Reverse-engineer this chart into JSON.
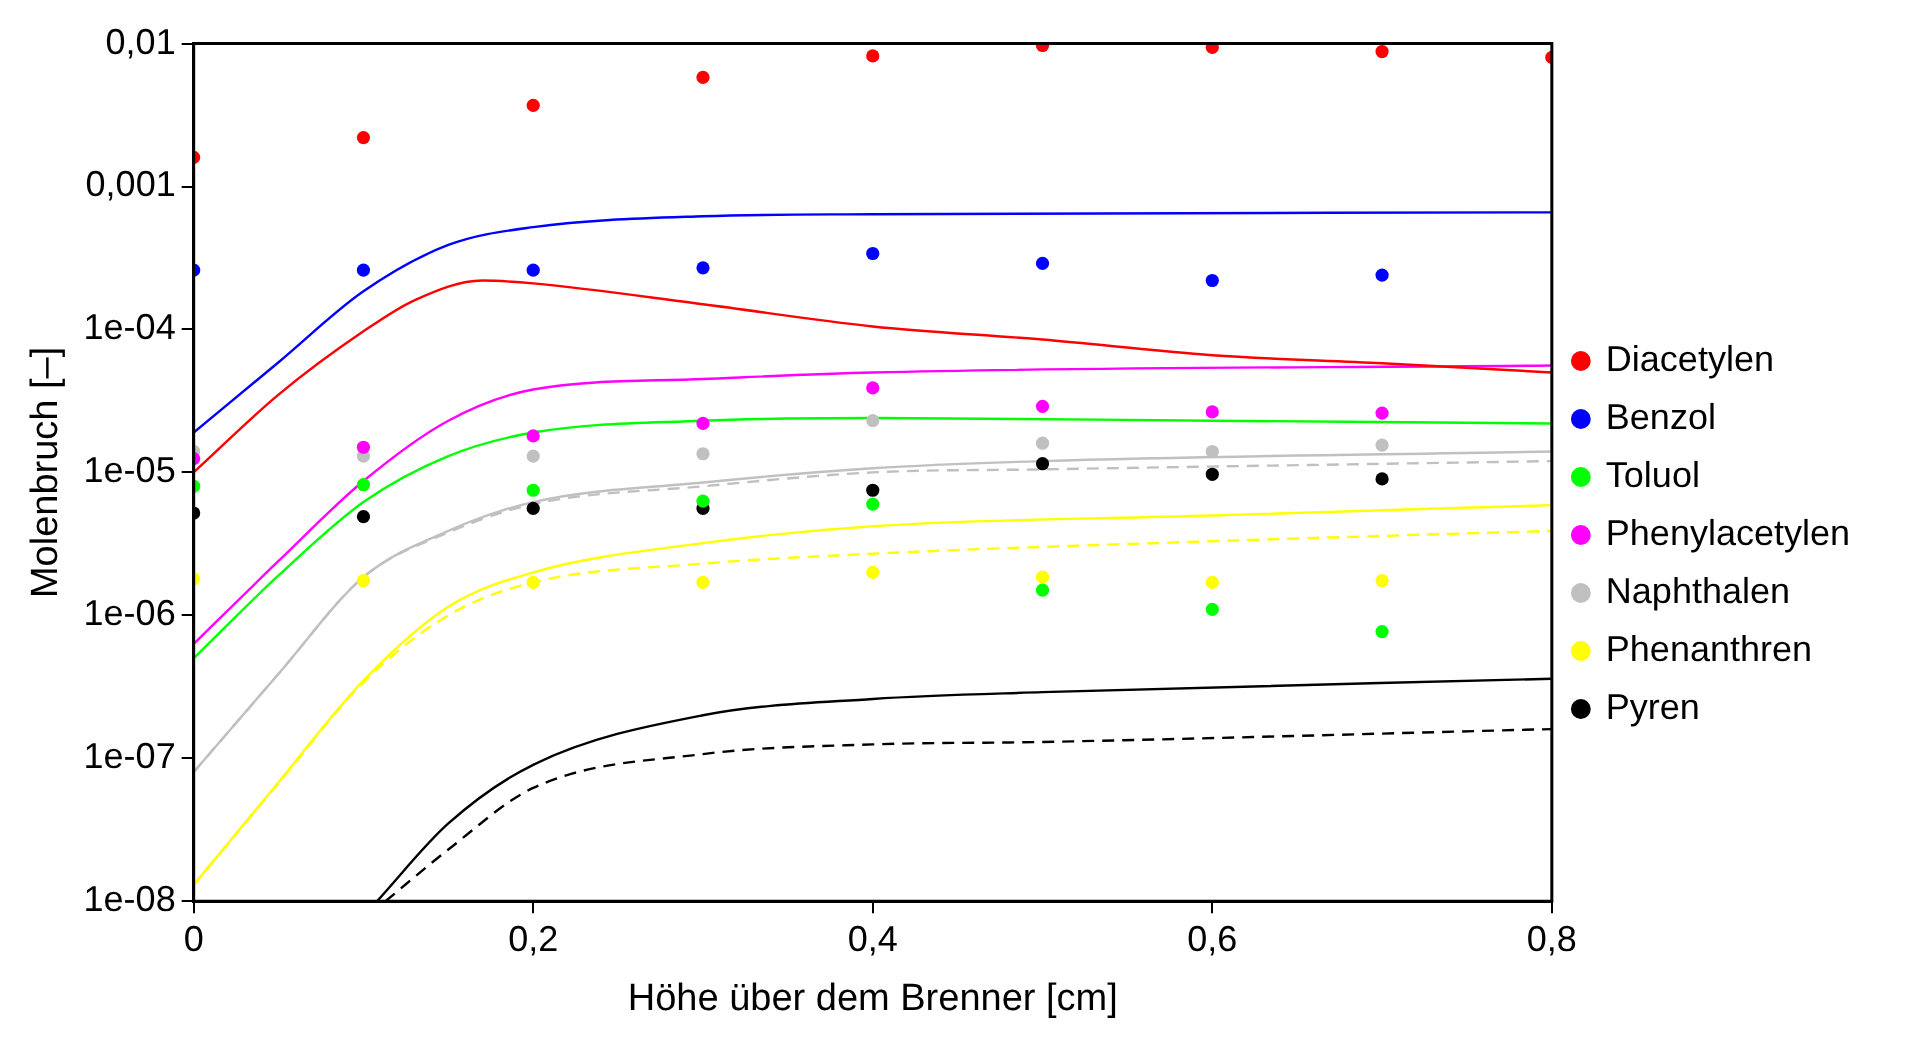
{
  "chart_data": {
    "type": "scatter",
    "xlabel": "Höhe über dem Brenner [cm]",
    "ylabel": "Molenbruch [–]",
    "log": "y",
    "grid": false,
    "legend": "right",
    "marker": "circle",
    "xlim": [
      0,
      0.8
    ],
    "xticks": [
      0,
      {
        "value": 0.2,
        "label": "0,2"
      },
      {
        "value": 0.4,
        "label": "0,4"
      },
      {
        "value": 0.6,
        "label": "0,6"
      },
      {
        "value": 0.8,
        "label": "0,8"
      }
    ],
    "ylim": [
      1e-08,
      0.01
    ],
    "yticks": [
      {
        "value": 1e-08,
        "label": "1e-08"
      },
      {
        "value": 1e-07,
        "label": "1e-07"
      },
      {
        "value": 1e-06,
        "label": "1e-06"
      },
      {
        "value": 1e-05,
        "label": "1e-05"
      },
      {
        "value": 0.0001,
        "label": "1e-04"
      },
      {
        "value": 0.001,
        "label": "0,001"
      },
      {
        "value": 0.01,
        "label": "0,01"
      }
    ],
    "series": [
      {
        "name": "Diacetylen",
        "type": "scatter",
        "color": "#ff0000",
        "x": [
          0,
          0.1,
          0.2,
          0.3,
          0.4,
          0.5,
          0.6,
          0.7,
          0.8
        ],
        "values": [
          0.0016,
          0.0022,
          0.0037,
          0.0058,
          0.0082,
          0.0097,
          0.0094,
          0.0088,
          0.008
        ]
      },
      {
        "name": "Benzol",
        "type": "scatter",
        "color": "#0000ff",
        "x": [
          0,
          0.1,
          0.2,
          0.3,
          0.4,
          0.5,
          0.6,
          0.7
        ],
        "values": [
          0.00026,
          0.00026,
          0.00026,
          0.00027,
          0.00034,
          0.00029,
          0.00022,
          0.00024
        ]
      },
      {
        "name": "Toluol",
        "type": "scatter",
        "color": "#00ff00",
        "x": [
          0,
          0.1,
          0.2,
          0.3,
          0.4,
          0.5,
          0.6,
          0.7
        ],
        "values": [
          8e-06,
          8.2e-06,
          7.5e-06,
          6.3e-06,
          6e-06,
          1.5e-06,
          1.1e-06,
          7.7e-07
        ]
      },
      {
        "name": "Phenylacetylen",
        "type": "scatter",
        "color": "#ff00ff",
        "x": [
          0,
          0.1,
          0.2,
          0.3,
          0.4,
          0.5,
          0.6,
          0.7
        ],
        "values": [
          1.25e-05,
          1.5e-05,
          1.8e-05,
          2.2e-05,
          3.9e-05,
          2.9e-05,
          2.65e-05,
          2.6e-05
        ]
      },
      {
        "name": "Naphthalen",
        "type": "scatter",
        "color": "#c0c0c0",
        "x": [
          0,
          0.1,
          0.2,
          0.3,
          0.4,
          0.5,
          0.6,
          0.7
        ],
        "values": [
          1.4e-05,
          1.3e-05,
          1.3e-05,
          1.35e-05,
          2.3e-05,
          1.6e-05,
          1.4e-05,
          1.55e-05
        ]
      },
      {
        "name": "Phenanthren",
        "type": "scatter",
        "color": "#ffff00",
        "x": [
          0,
          0.1,
          0.2,
          0.3,
          0.4,
          0.5,
          0.6,
          0.7
        ],
        "values": [
          1.8e-06,
          1.75e-06,
          1.7e-06,
          1.7e-06,
          2e-06,
          1.85e-06,
          1.7e-06,
          1.75e-06
        ]
      },
      {
        "name": "Pyren",
        "type": "scatter",
        "color": "#000000",
        "x": [
          0,
          0.1,
          0.2,
          0.3,
          0.4,
          0.5,
          0.6,
          0.7
        ],
        "values": [
          5.2e-06,
          4.9e-06,
          5.6e-06,
          5.6e-06,
          7.5e-06,
          1.15e-05,
          9.7e-06,
          9e-06
        ]
      },
      {
        "type": "line",
        "marker": "none",
        "line_style": "solid",
        "color": "#0000ff",
        "x": [
          0,
          0.05,
          0.1,
          0.15,
          0.2,
          0.3,
          0.4,
          0.8
        ],
        "values": [
          1.9e-05,
          5.9e-05,
          0.000185,
          0.00039,
          0.00052,
          0.00062,
          0.00064,
          0.00066
        ]
      },
      {
        "type": "line",
        "marker": "none",
        "line_style": "solid",
        "color": "#ff0000",
        "x": [
          0,
          0.05,
          0.1,
          0.13,
          0.17,
          0.2,
          0.3,
          0.4,
          0.5,
          0.6,
          0.7,
          0.8
        ],
        "values": [
          1e-05,
          3.5e-05,
          9.7e-05,
          0.00016,
          0.00022,
          0.00021,
          0.00015,
          0.000105,
          8.5e-05,
          6.6e-05,
          5.8e-05,
          5e-05
        ]
      },
      {
        "type": "line",
        "marker": "none",
        "line_style": "solid",
        "color": "#ff00ff",
        "x": [
          0,
          0.05,
          0.1,
          0.15,
          0.2,
          0.3,
          0.4,
          0.8
        ],
        "values": [
          6.3e-07,
          2.4e-06,
          8.7e-06,
          2.3e-05,
          3.8e-05,
          4.5e-05,
          5e-05,
          5.6e-05
        ]
      },
      {
        "type": "line",
        "marker": "none",
        "line_style": "solid",
        "color": "#00ff00",
        "x": [
          0,
          0.05,
          0.1,
          0.15,
          0.2,
          0.3,
          0.4,
          0.6,
          0.8
        ],
        "values": [
          5e-07,
          1.9e-06,
          6.2e-06,
          1.3e-05,
          1.9e-05,
          2.3e-05,
          2.4e-05,
          2.3e-05,
          2.2e-05
        ]
      },
      {
        "type": "line",
        "marker": "none",
        "line_style": "solid",
        "color": "#c0c0c0",
        "x": [
          0,
          0.05,
          0.1,
          0.15,
          0.2,
          0.3,
          0.4,
          0.5,
          0.8
        ],
        "values": [
          8e-08,
          3.9e-07,
          1.85e-06,
          3.9e-06,
          6.2e-06,
          8.5e-06,
          1.07e-05,
          1.2e-05,
          1.4e-05
        ]
      },
      {
        "type": "line",
        "marker": "none",
        "line_style": "dashed",
        "color": "#c0c0c0",
        "x": [
          0,
          0.05,
          0.1,
          0.15,
          0.2,
          0.3,
          0.4,
          0.5,
          0.8
        ],
        "values": [
          8e-08,
          3.9e-07,
          1.85e-06,
          3.8e-06,
          6e-06,
          8e-06,
          1e-05,
          1.05e-05,
          1.2e-05
        ]
      },
      {
        "type": "line",
        "marker": "none",
        "line_style": "solid",
        "color": "#ffff00",
        "x": [
          0,
          0.05,
          0.1,
          0.15,
          0.2,
          0.3,
          0.4,
          0.6,
          0.8
        ],
        "values": [
          1.3e-08,
          6.8e-08,
          3.5e-07,
          1.15e-06,
          2e-06,
          3.2e-06,
          4.2e-06,
          5e-06,
          5.9e-06
        ]
      },
      {
        "type": "line",
        "marker": "none",
        "line_style": "dashed",
        "color": "#ffff00",
        "x": [
          0,
          0.05,
          0.1,
          0.15,
          0.2,
          0.3,
          0.4,
          0.6,
          0.8
        ],
        "values": [
          1.3e-08,
          6.7e-08,
          3.4e-07,
          1e-06,
          1.7e-06,
          2.3e-06,
          2.7e-06,
          3.3e-06,
          3.9e-06
        ]
      },
      {
        "type": "line",
        "marker": "none",
        "line_style": "solid",
        "color": "#000000",
        "x": [
          0.108,
          0.15,
          0.2,
          0.3,
          0.4,
          0.5,
          0.8
        ],
        "values": [
          1e-08,
          3.5e-08,
          9e-08,
          2e-07,
          2.6e-07,
          2.9e-07,
          3.6e-07
        ]
      },
      {
        "type": "line",
        "marker": "none",
        "line_style": "dashed",
        "color": "#000000",
        "x": [
          0.113,
          0.15,
          0.2,
          0.3,
          0.4,
          0.5,
          0.8
        ],
        "values": [
          1e-08,
          2.3e-08,
          6.2e-08,
          1.07e-07,
          1.25e-07,
          1.3e-07,
          1.6e-07
        ]
      }
    ]
  }
}
